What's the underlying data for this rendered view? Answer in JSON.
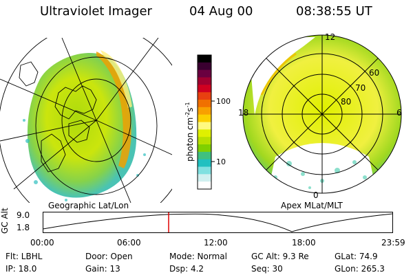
{
  "header": {
    "title": "Ultraviolet Imager",
    "date": "04 Aug 00",
    "time": "08:38:55 UT"
  },
  "geo_panel": {
    "caption": "Geographic Lat/Lon"
  },
  "apex_panel": {
    "caption": "Apex MLat/MLT",
    "mlt_labels": {
      "top": "12",
      "left": "18",
      "right": "6",
      "bottom": "0"
    },
    "lat_labels": [
      "60",
      "70",
      "80"
    ]
  },
  "colorbar": {
    "unit_label": "photon cm",
    "unit_exp1": "-2",
    "unit_s": "s",
    "unit_exp2": "-1",
    "tick_labels": [
      "100",
      "10"
    ],
    "colors": [
      "#000000",
      "#3a0030",
      "#6a0040",
      "#a00030",
      "#d00020",
      "#e84010",
      "#f07000",
      "#f8a000",
      "#fbd000",
      "#fffa80",
      "#e0f000",
      "#b8e000",
      "#80d000",
      "#40c080",
      "#20c0c0",
      "#80e0e0",
      "#d0f0f0",
      "#ffffff"
    ]
  },
  "altitude_plot": {
    "axis_label": "GC Alt",
    "y_ticks": [
      "9.0",
      "1.8"
    ],
    "x_ticks": [
      "00:00",
      "06:00",
      "12:00",
      "18:00",
      "23:59"
    ],
    "current_marker_color": "#e00000"
  },
  "info": {
    "filter": "Flt: LBHL",
    "door": "Door: Open",
    "mode": "Mode: Normal",
    "gc_alt": "GC Alt: 9.3 Re",
    "glat": "GLat:  74.9",
    "ip": "IP: 18.0",
    "gain": "Gain: 13",
    "dsp": "Dsp:    4.2",
    "seq": "Seq: 30",
    "glon": "GLon: 265.3"
  }
}
